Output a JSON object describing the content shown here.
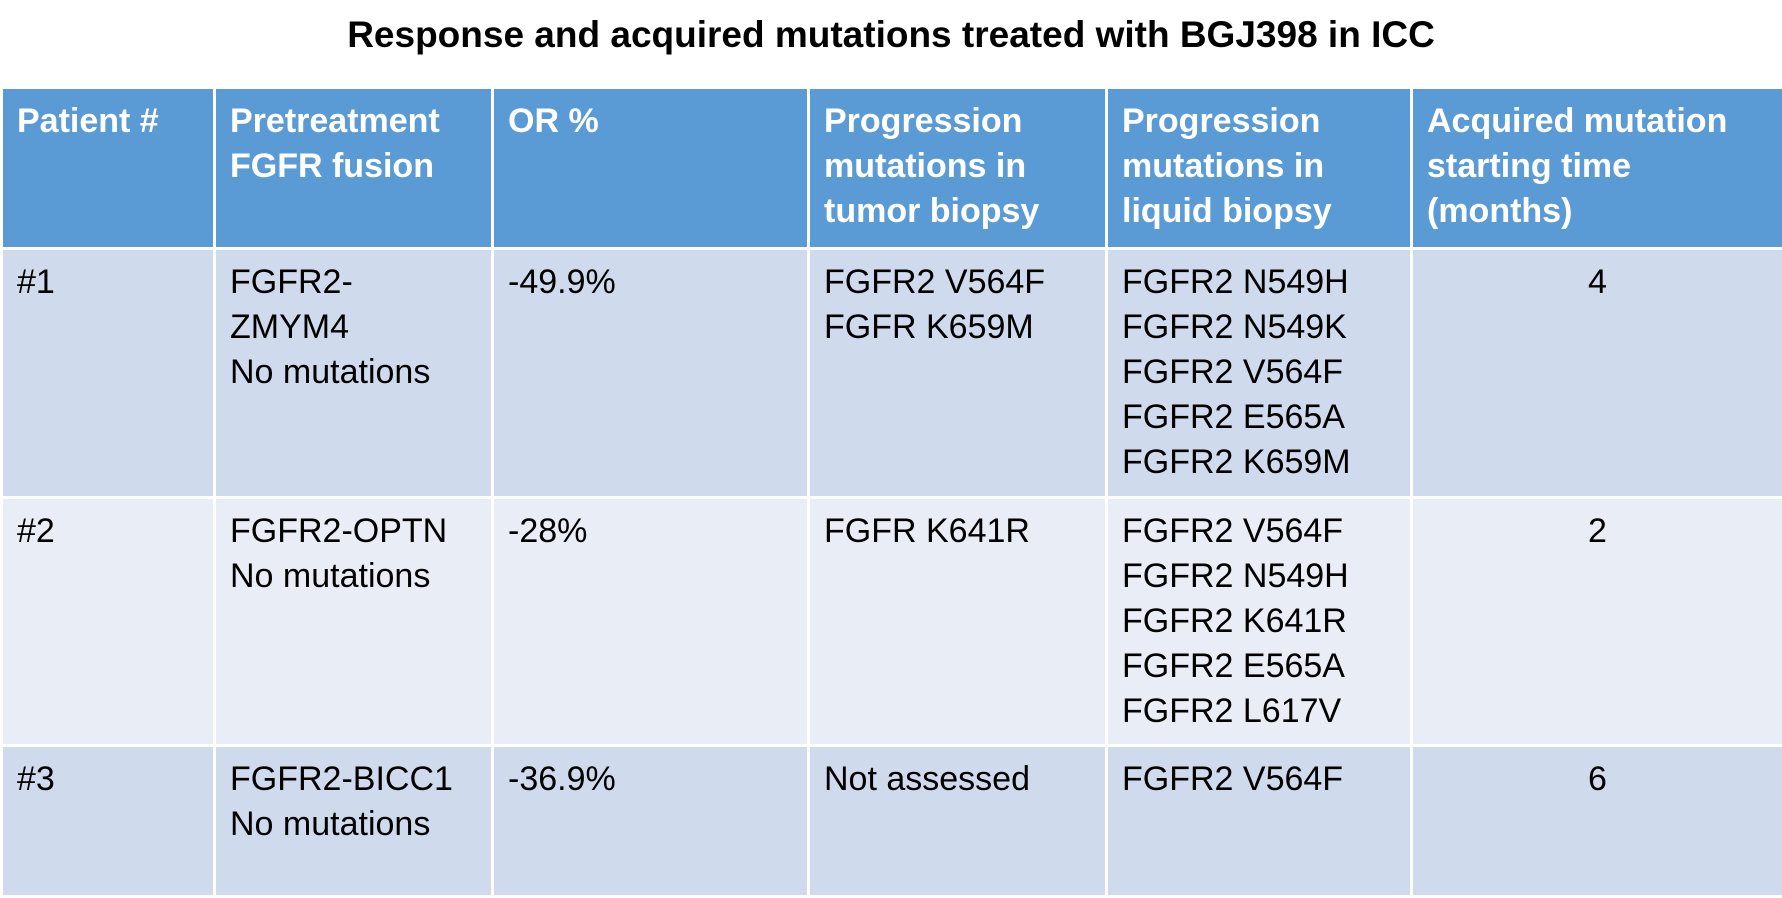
{
  "title": "Response and acquired mutations treated with BGJ398 in ICC",
  "table": {
    "header": [
      [
        "Patient #"
      ],
      [
        "Pretreatment",
        "FGFR fusion"
      ],
      [
        "OR %"
      ],
      [
        "Progression",
        "mutations in",
        "tumor biopsy"
      ],
      [
        "Progression",
        "mutations in",
        "liquid biopsy"
      ],
      [
        "Acquired mutation",
        "starting time",
        "(months)"
      ]
    ],
    "rows": [
      [
        [
          "#1"
        ],
        [
          "FGFR2-",
          "ZMYM4",
          "No mutations"
        ],
        [
          "-49.9%"
        ],
        [
          "FGFR2 V564F",
          "FGFR K659M"
        ],
        [
          "FGFR2 N549H",
          "FGFR2 N549K",
          "FGFR2 V564F",
          "FGFR2 E565A",
          "FGFR2 K659M"
        ],
        [
          4
        ]
      ],
      [
        [
          "#2"
        ],
        [
          "FGFR2-OPTN",
          "No mutations"
        ],
        [
          "-28%"
        ],
        [
          "FGFR K641R"
        ],
        [
          "FGFR2 V564F",
          "FGFR2 N549H",
          "FGFR2 K641R",
          "FGFR2 E565A",
          "FGFR2 L617V"
        ],
        [
          2
        ]
      ],
      [
        [
          "#3"
        ],
        [
          "FGFR2-BICC1",
          "No mutations"
        ],
        [
          "-36.9%"
        ],
        [
          "Not assessed"
        ],
        [
          "FGFR2 V564F"
        ],
        [
          6
        ]
      ]
    ]
  }
}
